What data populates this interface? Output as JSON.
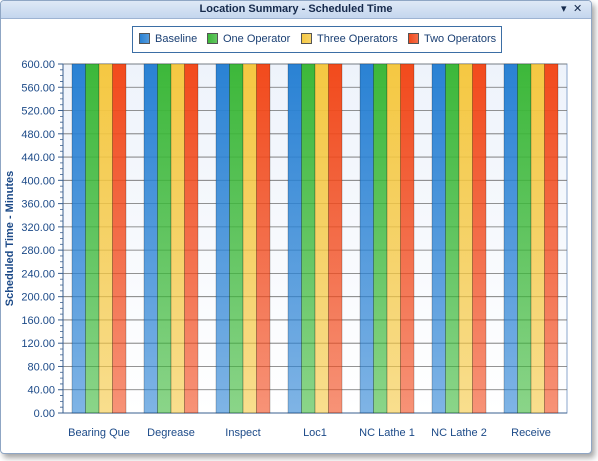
{
  "window": {
    "title": "Location Summary - Scheduled Time",
    "pin_glyph": "▾",
    "close_glyph": "✕"
  },
  "legend": [
    {
      "name": "Baseline",
      "color": "#2a82d4"
    },
    {
      "name": "One Operator",
      "color": "#3db83a"
    },
    {
      "name": "Three Operators",
      "color": "#f5c842"
    },
    {
      "name": "Two Operators",
      "color": "#f24a1c"
    }
  ],
  "chart_data": {
    "type": "bar",
    "title": "Location Summary - Scheduled Time",
    "xlabel": "",
    "ylabel": "Scheduled Time - Minutes",
    "ylim": [
      0,
      600
    ],
    "ytick_step": 40,
    "ytick_labels": [
      "0.00",
      "40.00",
      "80.00",
      "120.00",
      "160.00",
      "200.00",
      "240.00",
      "280.00",
      "320.00",
      "360.00",
      "400.00",
      "440.00",
      "480.00",
      "520.00",
      "560.00",
      "600.00"
    ],
    "categories": [
      "Bearing Que",
      "Degrease",
      "Inspect",
      "Loc1",
      "NC Lathe 1",
      "NC Lathe 2",
      "Receive"
    ],
    "series": [
      {
        "name": "Baseline",
        "values": [
          600,
          600,
          600,
          600,
          600,
          600,
          600
        ]
      },
      {
        "name": "One Operator",
        "values": [
          600,
          600,
          600,
          600,
          600,
          600,
          600
        ]
      },
      {
        "name": "Three Operators",
        "values": [
          600,
          600,
          600,
          600,
          600,
          600,
          600
        ]
      },
      {
        "name": "Two Operators",
        "values": [
          600,
          600,
          600,
          600,
          600,
          600,
          600
        ]
      }
    ],
    "grid": true,
    "legend_position": "top"
  }
}
